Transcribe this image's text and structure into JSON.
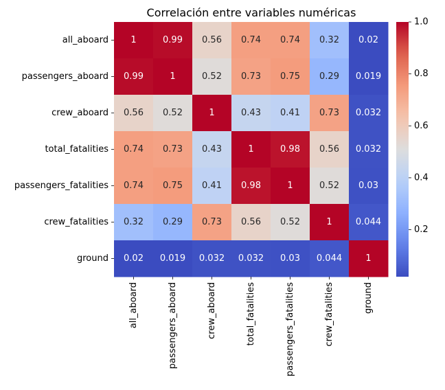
{
  "chart_data": {
    "type": "heatmap",
    "title": "Correlación entre variables numéricas",
    "row_labels": [
      "all_aboard",
      "passengers_aboard",
      "crew_aboard",
      "total_fatalities",
      "passengers_fatalities",
      "crew_fatalities",
      "ground"
    ],
    "col_labels": [
      "all_aboard",
      "passengers_aboard",
      "crew_aboard",
      "total_fatalities",
      "passengers_fatalities",
      "crew_fatalities",
      "ground"
    ],
    "values": [
      [
        1,
        0.99,
        0.56,
        0.74,
        0.74,
        0.32,
        0.02
      ],
      [
        0.99,
        1,
        0.52,
        0.73,
        0.75,
        0.29,
        0.019
      ],
      [
        0.56,
        0.52,
        1,
        0.43,
        0.41,
        0.73,
        0.032
      ],
      [
        0.74,
        0.73,
        0.43,
        1,
        0.98,
        0.56,
        0.032
      ],
      [
        0.74,
        0.75,
        0.41,
        0.98,
        1,
        0.52,
        0.03
      ],
      [
        0.32,
        0.29,
        0.73,
        0.56,
        0.52,
        1,
        0.044
      ],
      [
        0.02,
        0.019,
        0.032,
        0.032,
        0.03,
        0.044,
        1
      ]
    ],
    "colormap": "coolwarm",
    "vmin": 0.019,
    "vmax": 1,
    "colorbar_ticks": [
      "0.2",
      "0.4",
      "0.6",
      "0.8",
      "1.0"
    ],
    "annotations": true
  }
}
